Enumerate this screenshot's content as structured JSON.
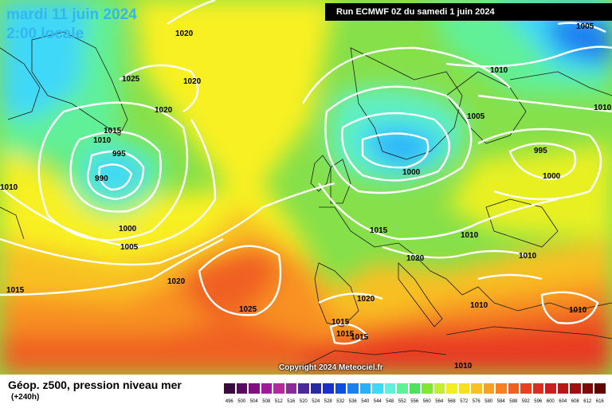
{
  "header": {
    "date": "mardi 11 juin 2024",
    "time": "2:00 locale",
    "run": "Run ECMWF 0Z du samedi 1 juin 2024"
  },
  "copyright": "Copyright 2024 Meteociel.fr",
  "footer": {
    "title": "Géop. z500, pression niveau mer",
    "subtitle": "(+240h)"
  },
  "legend": {
    "values": [
      "496",
      "500",
      "504",
      "508",
      "512",
      "516",
      "520",
      "524",
      "528",
      "532",
      "536",
      "540",
      "544",
      "548",
      "552",
      "556",
      "560",
      "564",
      "568",
      "572",
      "576",
      "580",
      "584",
      "588",
      "592",
      "596",
      "600",
      "604",
      "608",
      "612",
      "616"
    ],
    "colors": [
      "#3a0a3c",
      "#5a0a5e",
      "#80107f",
      "#9e1a9a",
      "#b22a9e",
      "#8c2a9a",
      "#4a2a9a",
      "#2a2aa0",
      "#1a30c8",
      "#0a50e0",
      "#1a80f0",
      "#2ab0f8",
      "#40d8f8",
      "#60f0e0",
      "#60f098",
      "#50e060",
      "#80e830",
      "#c0f030",
      "#f0f020",
      "#f8e020",
      "#f8c020",
      "#f8a020",
      "#f88020",
      "#f06020",
      "#e84020",
      "#d83020",
      "#c82020",
      "#b81818",
      "#a01010",
      "#800808",
      "#600000"
    ]
  },
  "isobar_labels": [
    "1020",
    "1025",
    "1020",
    "1020",
    "1015",
    "1010",
    "995",
    "990",
    "1010",
    "1000",
    "1005",
    "1015",
    "1020",
    "1025",
    "1005",
    "1010",
    "1005",
    "1010",
    "995",
    "1000",
    "1000",
    "1015",
    "1010",
    "1020",
    "1010",
    "1010",
    "1020",
    "1015",
    "1015",
    "1015",
    "1010",
    "1010"
  ]
}
